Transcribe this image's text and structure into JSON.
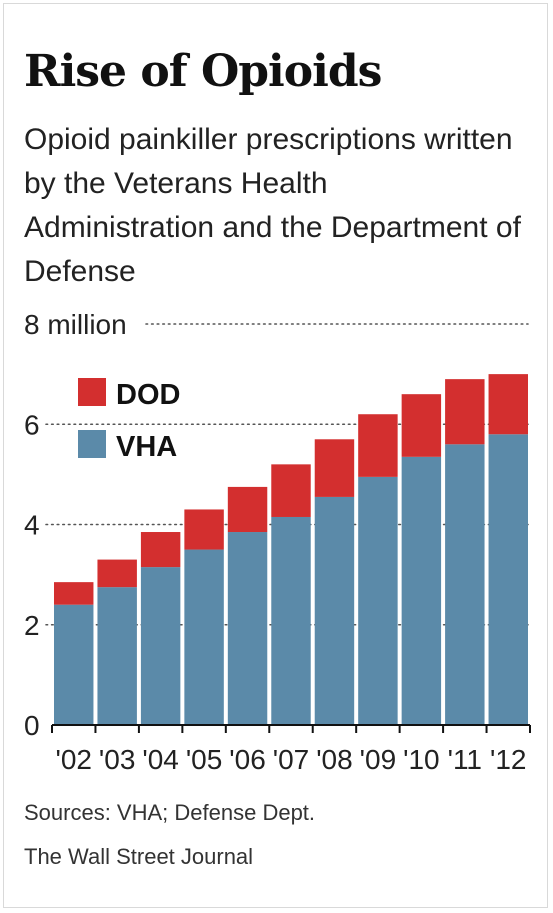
{
  "header": {
    "title": "Rise of Opioids",
    "subtitle": "Opioid painkiller prescriptions written by the Veterans Health Administration and the Department of Defense"
  },
  "footer": {
    "sources": "Sources: VHA; Defense Dept.",
    "credit": "The Wall Street Journal"
  },
  "colors": {
    "vha": "#5b8aa9",
    "dod": "#d32f2f"
  },
  "chart_data": {
    "type": "bar",
    "stacked": true,
    "categories": [
      "'02",
      "'03",
      "'04",
      "'05",
      "'06",
      "'07",
      "'08",
      "'09",
      "'10",
      "'11",
      "'12"
    ],
    "series": [
      {
        "name": "VHA",
        "values": [
          2.4,
          2.75,
          3.15,
          3.5,
          3.85,
          4.15,
          4.55,
          4.95,
          5.35,
          5.6,
          5.8
        ]
      },
      {
        "name": "DOD",
        "values": [
          0.45,
          0.55,
          0.7,
          0.8,
          0.9,
          1.05,
          1.15,
          1.25,
          1.25,
          1.3,
          1.2
        ]
      }
    ],
    "ylim": [
      0,
      8
    ],
    "yticks": [
      {
        "value": 0,
        "label": "0"
      },
      {
        "value": 2,
        "label": "2"
      },
      {
        "value": 4,
        "label": "4"
      },
      {
        "value": 6,
        "label": "6"
      },
      {
        "value": 8,
        "label": "8 million"
      }
    ],
    "gridlines": "dotted",
    "legend_position": "top-left",
    "legend": [
      {
        "label": "DOD",
        "series": "DOD"
      },
      {
        "label": "VHA",
        "series": "VHA"
      }
    ]
  }
}
